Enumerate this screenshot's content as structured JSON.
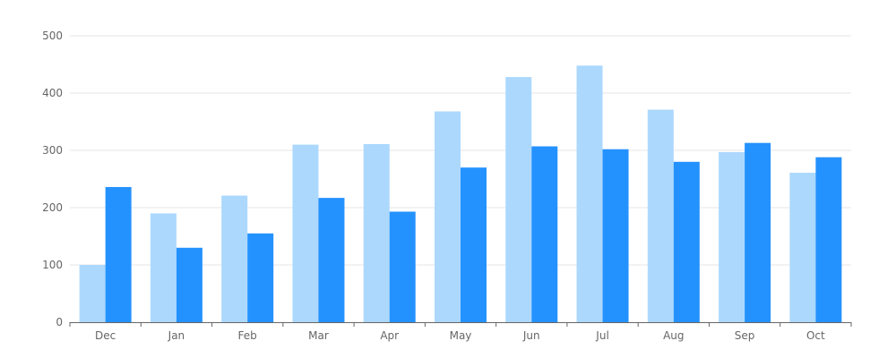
{
  "chart_data": {
    "type": "bar",
    "title": "",
    "xlabel": "",
    "ylabel": "",
    "categories": [
      "Dec",
      "Jan",
      "Feb",
      "Mar",
      "Apr",
      "May",
      "Jun",
      "Jul",
      "Aug",
      "Sep",
      "Oct"
    ],
    "series": [
      {
        "color": "#acd8fe",
        "values": [
          100,
          190,
          221,
          310,
          311,
          368,
          428,
          448,
          371,
          297,
          261
        ]
      },
      {
        "color": "#2492fe",
        "values": [
          236,
          130,
          155,
          217,
          193,
          270,
          307,
          302,
          280,
          313,
          288
        ]
      }
    ],
    "ylim": [
      0,
      500
    ],
    "yticks": [
      0,
      100,
      200,
      300,
      400,
      500
    ],
    "grid": true,
    "legend": "none"
  }
}
